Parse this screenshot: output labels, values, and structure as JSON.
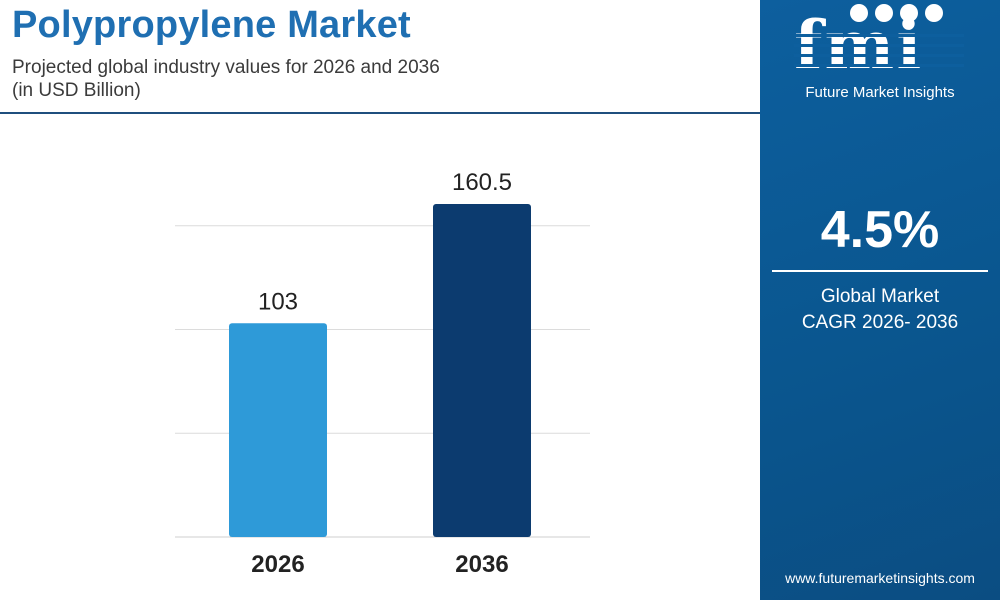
{
  "header": {
    "title": "Polypropylene Market",
    "subtitle": "Projected global industry values for 2026 and 2036",
    "units": "(in USD Billion)"
  },
  "chart_data": {
    "type": "bar",
    "categories": [
      "2026",
      "2036"
    ],
    "values": [
      103,
      160.5
    ],
    "value_labels": [
      "103",
      "160.5"
    ],
    "ylim": [
      0,
      200
    ],
    "grid": true,
    "colors": [
      "#2e9ad8",
      "#0c3b6f"
    ]
  },
  "sidebar": {
    "brand_logo": "fmi",
    "brand_name": "Future Market Insights",
    "cagr_value": "4.5%",
    "cagr_label_line1": "Global Market",
    "cagr_label_line2": "CAGR 2026- 2036",
    "url": "www.futuremarketinsights.com"
  },
  "colors": {
    "title": "#1f6fb2",
    "sidebar_bg": "#0d5f9e",
    "bar_2026": "#2e9ad8",
    "bar_2036": "#0c3b6f"
  }
}
